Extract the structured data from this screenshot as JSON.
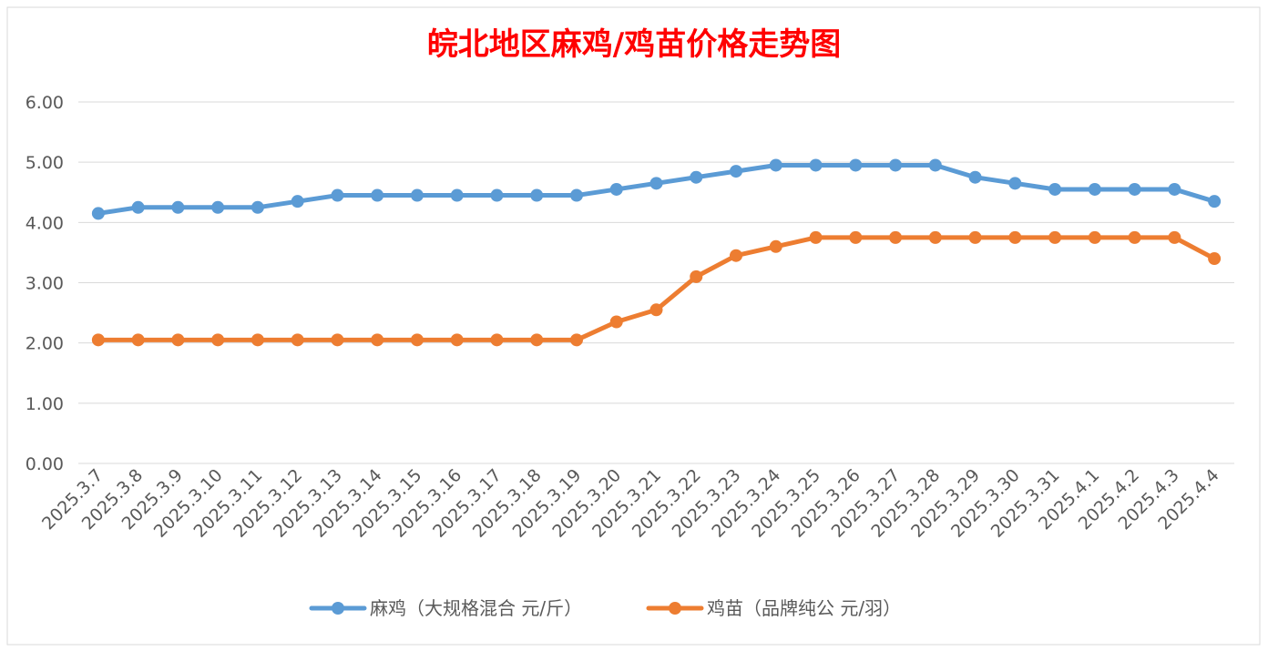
{
  "chart_data": {
    "type": "line",
    "title": "皖北地区麻鸡/鸡苗价格走势图",
    "title_color": "#FF0000",
    "xlabel": "",
    "ylabel": "",
    "ylim": [
      0,
      6
    ],
    "y_ticks": [
      "0.00",
      "1.00",
      "2.00",
      "3.00",
      "4.00",
      "5.00",
      "6.00"
    ],
    "grid": true,
    "legend_position": "bottom",
    "categories": [
      "2025.3.7",
      "2025.3.8",
      "2025.3.9",
      "2025.3.10",
      "2025.3.11",
      "2025.3.12",
      "2025.3.13",
      "2025.3.14",
      "2025.3.15",
      "2025.3.16",
      "2025.3.17",
      "2025.3.18",
      "2025.3.19",
      "2025.3.20",
      "2025.3.21",
      "2025.3.22",
      "2025.3.23",
      "2025.3.24",
      "2025.3.25",
      "2025.3.26",
      "2025.3.27",
      "2025.3.28",
      "2025.3.29",
      "2025.3.30",
      "2025.3.31",
      "2025.4.1",
      "2025.4.2",
      "2025.4.3",
      "2025.4.4"
    ],
    "series": [
      {
        "name": "麻鸡（大规格混合 元/斤）",
        "color": "#5B9BD5",
        "values": [
          4.15,
          4.25,
          4.25,
          4.25,
          4.25,
          4.35,
          4.45,
          4.45,
          4.45,
          4.45,
          4.45,
          4.45,
          4.45,
          4.55,
          4.65,
          4.75,
          4.85,
          4.95,
          4.95,
          4.95,
          4.95,
          4.95,
          4.75,
          4.65,
          4.55,
          4.55,
          4.55,
          4.55,
          4.35
        ]
      },
      {
        "name": "鸡苗（品牌纯公 元/羽）",
        "color": "#ED7D31",
        "values": [
          2.05,
          2.05,
          2.05,
          2.05,
          2.05,
          2.05,
          2.05,
          2.05,
          2.05,
          2.05,
          2.05,
          2.05,
          2.05,
          2.35,
          2.55,
          3.1,
          3.45,
          3.6,
          3.75,
          3.75,
          3.75,
          3.75,
          3.75,
          3.75,
          3.75,
          3.75,
          3.75,
          3.75,
          3.4
        ]
      }
    ]
  }
}
